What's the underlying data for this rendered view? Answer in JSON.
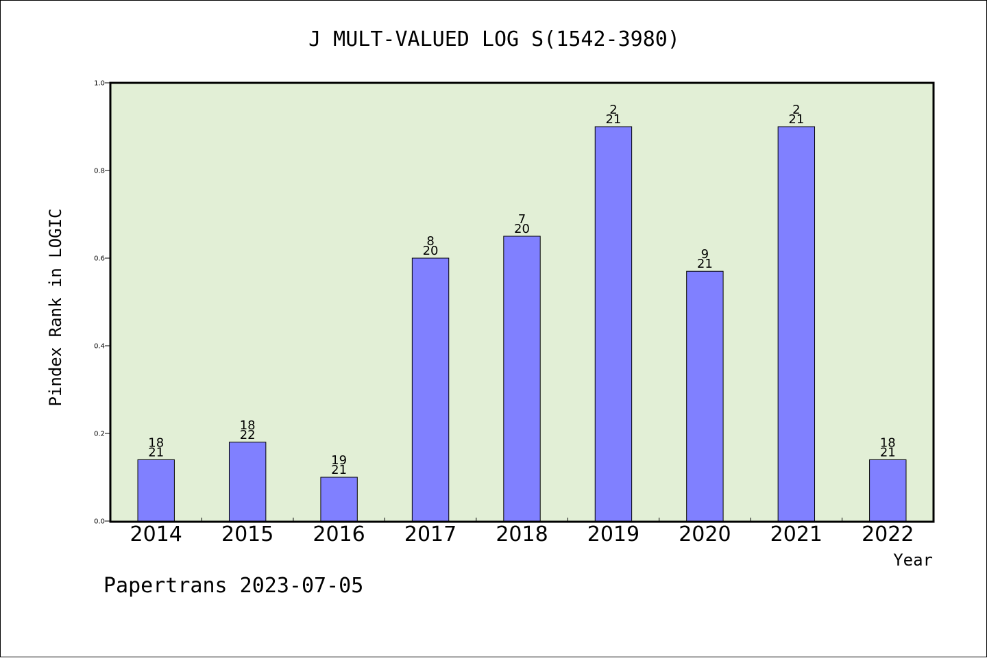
{
  "chart_data": {
    "type": "bar",
    "title": "J MULT-VALUED LOG S(1542-3980)",
    "xlabel": "Year",
    "ylabel": "Pindex Rank in LOGIC",
    "categories": [
      "2014",
      "2015",
      "2016",
      "2017",
      "2018",
      "2019",
      "2020",
      "2021",
      "2022"
    ],
    "values": [
      0.14,
      0.18,
      0.1,
      0.6,
      0.65,
      0.9,
      0.57,
      0.9,
      0.14
    ],
    "rank_labels": [
      {
        "rank": "18",
        "total": "21"
      },
      {
        "rank": "18",
        "total": "22"
      },
      {
        "rank": "19",
        "total": "21"
      },
      {
        "rank": "8",
        "total": "20"
      },
      {
        "rank": "7",
        "total": "20"
      },
      {
        "rank": "2",
        "total": "21"
      },
      {
        "rank": "9",
        "total": "21"
      },
      {
        "rank": "2",
        "total": "21"
      },
      {
        "rank": "18",
        "total": "21"
      }
    ],
    "ylim": [
      0,
      1.0
    ],
    "yticks": [
      "0.0",
      "0.2",
      "0.4",
      "0.6",
      "0.8",
      "1.0"
    ],
    "grid": false,
    "colors": {
      "plot_background": "#e2efd6",
      "bar_fill": "#8080ff",
      "bar_stroke": "#000000"
    }
  },
  "footer": "Papertrans 2023-07-05"
}
